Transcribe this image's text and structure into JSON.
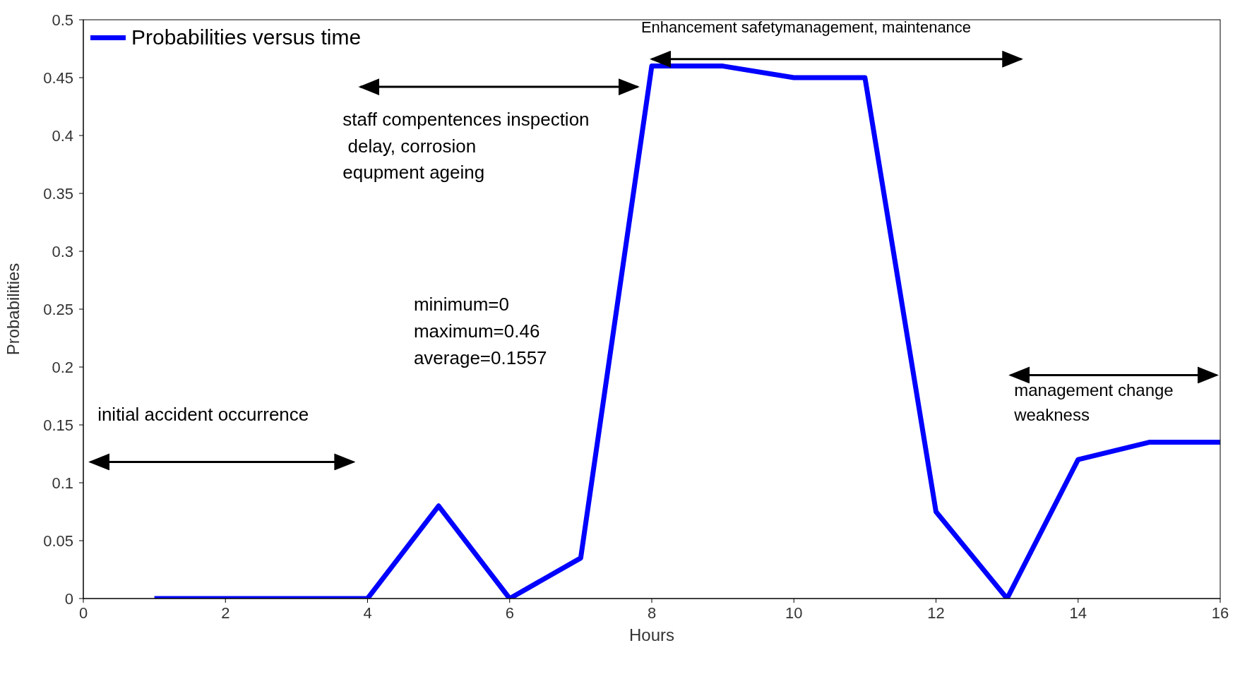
{
  "chart_data": {
    "type": "line",
    "xlabel": "Hours",
    "ylabel": "Probabilities",
    "x": [
      1,
      2,
      3,
      4,
      5,
      6,
      7,
      8,
      9,
      10,
      11,
      12,
      13,
      14,
      15,
      16
    ],
    "series": [
      {
        "name": "Probabilities versus time",
        "color": "#0000ff",
        "values": [
          0,
          0,
          0,
          0,
          0.08,
          0,
          0.035,
          0.46,
          0.46,
          0.45,
          0.45,
          0.075,
          0,
          0.12,
          0.135,
          0.135
        ]
      }
    ],
    "xlim": [
      0,
      16
    ],
    "xticks": [
      0,
      2,
      4,
      6,
      8,
      10,
      12,
      14,
      16
    ],
    "ylim": [
      0,
      0.5
    ],
    "yticks": [
      0,
      0.05,
      0.1,
      0.15,
      0.2,
      0.25,
      0.3,
      0.35,
      0.4,
      0.45,
      0.5
    ],
    "grid": false,
    "legend": "top left",
    "marker": "none",
    "line_style": "solid",
    "annotations": [
      "Enhancement safetymanagement, maintenance",
      "staff compentences inspection\n delay, corrosion\nequpment ageing",
      "minimum=0\nmaximum=0.46\naverage=0.1557",
      "initial accident occurrence",
      "management change\nweakness"
    ]
  }
}
